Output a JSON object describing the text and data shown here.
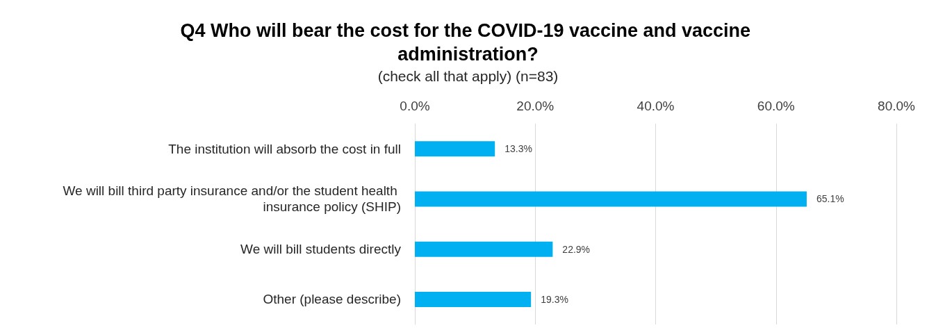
{
  "chart_data": {
    "type": "bar",
    "orientation": "horizontal",
    "title": "Q4 Who will bear the cost for the COVID-19 vaccine and vaccine administration?",
    "subtitle": "(check all that apply) (n=83)",
    "categories": [
      "The institution will absorb the cost in full",
      "We will bill third party insurance and/or the student health insurance policy (SHIP)",
      "We will bill students directly",
      "Other (please describe)"
    ],
    "values": [
      13.3,
      65.1,
      22.9,
      19.3
    ],
    "value_labels": [
      "13.3%",
      "65.1%",
      "22.9%",
      "19.3%"
    ],
    "color": "#00b0f0",
    "xlim": [
      0,
      80
    ],
    "xticks": [
      {
        "value": 0,
        "label": "0.0%"
      },
      {
        "value": 20,
        "label": "20.0%"
      },
      {
        "value": 40,
        "label": "40.0%"
      },
      {
        "value": 60,
        "label": "60.0%"
      },
      {
        "value": 80,
        "label": "80.0%"
      }
    ],
    "grid": "x"
  }
}
